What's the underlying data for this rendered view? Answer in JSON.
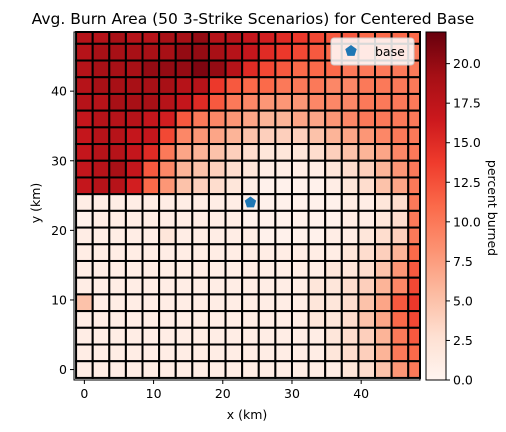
{
  "chart_data": {
    "type": "heatmap",
    "title": "Avg. Burn Area (50 3-Strike Scenarios) for Centered Base",
    "xlabel": "x (km)",
    "ylabel": "y (km)",
    "colorbar_label": "percent burned",
    "colormap": "Reds",
    "xlim": [
      -1.5,
      48.5
    ],
    "ylim": [
      -1.5,
      48.5
    ],
    "xticks": [
      0,
      10,
      20,
      30,
      40
    ],
    "yticks": [
      0,
      10,
      20,
      30,
      40
    ],
    "colorbar_range": [
      0,
      22
    ],
    "colorbar_ticks": [
      0.0,
      2.5,
      5.0,
      7.5,
      10.0,
      12.5,
      15.0,
      17.5,
      20.0
    ],
    "colorbar_tick_labels": [
      "0.0",
      "2.5",
      "5.0",
      "7.5",
      "10.0",
      "12.5",
      "15.0",
      "17.5",
      "20.0"
    ],
    "cell_size_km": 2.4,
    "x_centers": [
      0,
      2.4,
      4.8,
      7.2,
      9.6,
      12,
      14.4,
      16.8,
      19.2,
      21.6,
      24,
      26.4,
      28.8,
      31.2,
      33.6,
      36,
      38.4,
      40.8,
      43.2,
      45.6,
      48
    ],
    "y_centers": [
      48,
      45.6,
      43.2,
      40.8,
      38.4,
      36,
      33.6,
      31.2,
      28.8,
      26.4,
      24,
      21.6,
      19.2,
      16.8,
      14.4,
      12,
      9.6,
      7.2,
      4.8,
      2.4,
      0
    ],
    "values_rows_top_to_bottom": [
      [
        18,
        18,
        19,
        18,
        18,
        19,
        19,
        20,
        18,
        18,
        17,
        16,
        15,
        14,
        13,
        12,
        12,
        11,
        11,
        11,
        11
      ],
      [
        18,
        19,
        19,
        19,
        19,
        19,
        20,
        20,
        19,
        18,
        17,
        15,
        14,
        13,
        12,
        11,
        11,
        11,
        11,
        11,
        10
      ],
      [
        18,
        19,
        19,
        19,
        20,
        20,
        20,
        21,
        20,
        18,
        15,
        13,
        12,
        11,
        11,
        11,
        10,
        10,
        10,
        10,
        10
      ],
      [
        18,
        19,
        19,
        19,
        19,
        19,
        18,
        18,
        14,
        12,
        11,
        11,
        10,
        10,
        10,
        9,
        9,
        10,
        10,
        10,
        10
      ],
      [
        18,
        18,
        19,
        19,
        19,
        18,
        17,
        15,
        12,
        10,
        9,
        8,
        8,
        8,
        9,
        9,
        9,
        10,
        10,
        10,
        10
      ],
      [
        17,
        18,
        18,
        18,
        17,
        16,
        12,
        10,
        9,
        8,
        7,
        6,
        6,
        7,
        7,
        8,
        9,
        10,
        10,
        10,
        10
      ],
      [
        17,
        18,
        18,
        17,
        17,
        13,
        9,
        8,
        7,
        6,
        5,
        4,
        4,
        4,
        5,
        6,
        7,
        8,
        9,
        10,
        10
      ],
      [
        17,
        18,
        18,
        17,
        15,
        10,
        7,
        6,
        5,
        4,
        3,
        2,
        2,
        2,
        3,
        4,
        5,
        6,
        7,
        9,
        10
      ],
      [
        17,
        18,
        19,
        17,
        12,
        9,
        6,
        5,
        4,
        3,
        2,
        1,
        1,
        1,
        1,
        2,
        3,
        4,
        6,
        8,
        10
      ],
      [
        17,
        18,
        18,
        16,
        11,
        8,
        5,
        4,
        3,
        2,
        1,
        0.5,
        0.5,
        0.5,
        0.5,
        1,
        2,
        3,
        5,
        7,
        10
      ],
      [
        1,
        1,
        1,
        1,
        1,
        1,
        1,
        1,
        1,
        1,
        0.5,
        0.5,
        0.5,
        0.5,
        0.5,
        0.5,
        1,
        1,
        2,
        3,
        10
      ],
      [
        0.5,
        1,
        1,
        1,
        1,
        1,
        1,
        1,
        1,
        1,
        0.5,
        0.5,
        0.5,
        0.5,
        0.5,
        0.5,
        1,
        1,
        2,
        3,
        10
      ],
      [
        1,
        1,
        1,
        1,
        1,
        2,
        1,
        1,
        1,
        1,
        1,
        0.5,
        0.5,
        0.5,
        0.5,
        1,
        1,
        2,
        3,
        4,
        10
      ],
      [
        1,
        1,
        1,
        1,
        1,
        1,
        1,
        1,
        1,
        1,
        1,
        1,
        1,
        1,
        1,
        1,
        2,
        3,
        4,
        6,
        11
      ],
      [
        1,
        1,
        1,
        1,
        1,
        1,
        1,
        1,
        1,
        1,
        1,
        1,
        1,
        1,
        1,
        2,
        2,
        3,
        5,
        8,
        12
      ],
      [
        1,
        1,
        1,
        1,
        1,
        1,
        1,
        1,
        1,
        1,
        1,
        1,
        1,
        1,
        2,
        2,
        3,
        4,
        6,
        9,
        13
      ],
      [
        5,
        1,
        1,
        1,
        1,
        1,
        1,
        1,
        1,
        1,
        1,
        1,
        1,
        1,
        2,
        2,
        3,
        5,
        7,
        12,
        14
      ],
      [
        1,
        1,
        1,
        1,
        1,
        1,
        1,
        1,
        1,
        1,
        1,
        1,
        1,
        1,
        2,
        2,
        3,
        5,
        7,
        11,
        13
      ],
      [
        1,
        1,
        1,
        1,
        1,
        1,
        1,
        1,
        1,
        1,
        1,
        1,
        1,
        1,
        1,
        2,
        3,
        4,
        6,
        10,
        12
      ],
      [
        1,
        1,
        1,
        1,
        1,
        1,
        1,
        1,
        1,
        1,
        1,
        1,
        1,
        1,
        1,
        2,
        3,
        4,
        6,
        10,
        11
      ],
      [
        1,
        1,
        1,
        1,
        1,
        1,
        1,
        1,
        1,
        1,
        1,
        1,
        1,
        1,
        1,
        1,
        2,
        3,
        5,
        8,
        10
      ]
    ],
    "marker": {
      "name": "base",
      "x": 24,
      "y": 24,
      "shape": "pentagon",
      "color": "#1f77b4"
    },
    "legend": {
      "entries": [
        "base"
      ],
      "position": "upper right"
    },
    "grid": false
  }
}
